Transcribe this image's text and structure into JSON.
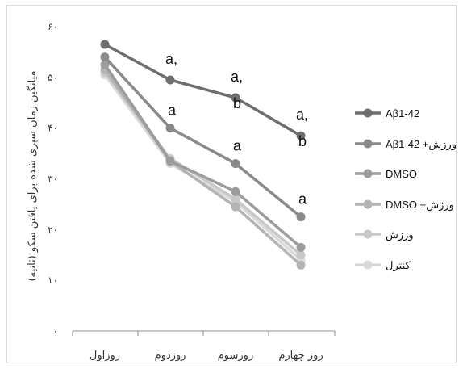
{
  "chart_data": {
    "type": "line",
    "title": "",
    "ylabel": "میانگین زمان سپری شده برای یافتن سکو (ثانیه)",
    "xlabel": "",
    "categories": [
      "روزاول",
      "روزدوم",
      "روزسوم",
      "روز چهارم"
    ],
    "y_ticks": [
      "۶۰",
      "۵۰",
      "۴۰",
      "۳۰",
      "۲۰",
      "۱۰",
      "۰"
    ],
    "ylim": [
      0,
      60
    ],
    "grid": false,
    "legend_position": "right",
    "series": [
      {
        "name": "Aβ1-42",
        "values": [
          56.5,
          49.5,
          46.0,
          38.5
        ],
        "color": "#6e6e6e"
      },
      {
        "name": "Aβ1-42 +ورزش",
        "values": [
          54.0,
          40.0,
          33.0,
          22.5
        ],
        "color": "#8a8a8a"
      },
      {
        "name": "DMSO",
        "values": [
          52.5,
          33.5,
          27.5,
          16.5
        ],
        "color": "#9c9c9c"
      },
      {
        "name": "DMSO +ورزش",
        "values": [
          51.5,
          33.5,
          24.5,
          13.0
        ],
        "color": "#b4b4b4"
      },
      {
        "name": "ورزش",
        "values": [
          51.0,
          34.0,
          26.0,
          15.0
        ],
        "color": "#c8c8c8"
      },
      {
        "name": "کنترل",
        "values": [
          50.5,
          33.0,
          25.5,
          14.0
        ],
        "color": "#dadada"
      }
    ],
    "annotations": [
      {
        "series": 0,
        "category": 1,
        "text": "a,"
      },
      {
        "series": 0,
        "category": 2,
        "text": "a,"
      },
      {
        "series": 0,
        "category": 2,
        "text": "b"
      },
      {
        "series": 0,
        "category": 3,
        "text": "a,"
      },
      {
        "series": 0,
        "category": 3,
        "text": "b"
      },
      {
        "series": 1,
        "category": 1,
        "text": "a"
      },
      {
        "series": 1,
        "category": 2,
        "text": "a"
      },
      {
        "series": 1,
        "category": 3,
        "text": "a"
      }
    ]
  }
}
